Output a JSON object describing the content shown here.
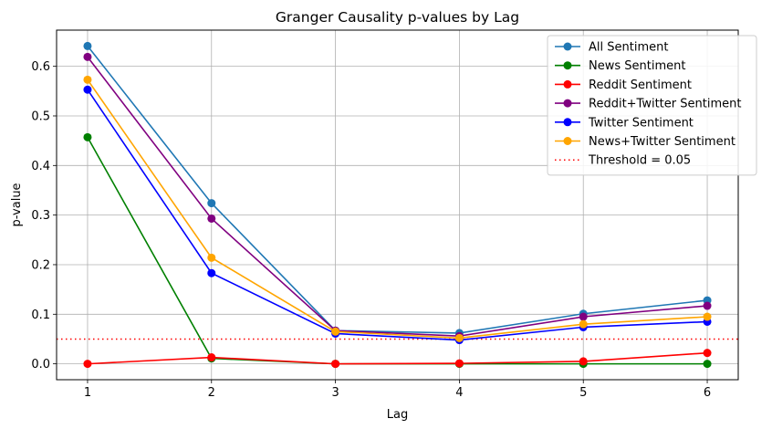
{
  "chart_data": {
    "type": "line",
    "title": "Granger Causality p-values by Lag",
    "xlabel": "Lag",
    "ylabel": "p-value",
    "x": [
      1,
      2,
      3,
      4,
      5,
      6
    ],
    "xlim": [
      0.75,
      6.25
    ],
    "ylim": [
      -0.032,
      0.673
    ],
    "xticks": [
      1,
      2,
      3,
      4,
      5,
      6
    ],
    "yticks": [
      0.0,
      0.1,
      0.2,
      0.3,
      0.4,
      0.5,
      0.6
    ],
    "ytick_labels": [
      "0.0",
      "0.1",
      "0.2",
      "0.3",
      "0.4",
      "0.5",
      "0.6"
    ],
    "grid": true,
    "legend_position": "top-right",
    "series": [
      {
        "name": "All Sentiment",
        "color": "#1f77b4",
        "values": [
          0.641,
          0.324,
          0.067,
          0.062,
          0.101,
          0.128
        ]
      },
      {
        "name": "News Sentiment",
        "color": "#008000",
        "values": [
          0.457,
          0.011,
          0.0,
          0.0,
          0.0,
          0.0
        ]
      },
      {
        "name": "Reddit Sentiment",
        "color": "#ff0000",
        "values": [
          0.0,
          0.013,
          0.0,
          0.001,
          0.005,
          0.022
        ]
      },
      {
        "name": "Reddit+Twitter Sentiment",
        "color": "#800080",
        "values": [
          0.619,
          0.293,
          0.067,
          0.056,
          0.095,
          0.117
        ]
      },
      {
        "name": "Twitter Sentiment",
        "color": "#0000ff",
        "values": [
          0.553,
          0.183,
          0.061,
          0.048,
          0.074,
          0.085
        ]
      },
      {
        "name": "News+Twitter Sentiment",
        "color": "#ffa500",
        "values": [
          0.573,
          0.214,
          0.065,
          0.052,
          0.08,
          0.095
        ]
      }
    ],
    "threshold": {
      "name": "Threshold = 0.05",
      "value": 0.05,
      "color": "#ff0000"
    }
  }
}
